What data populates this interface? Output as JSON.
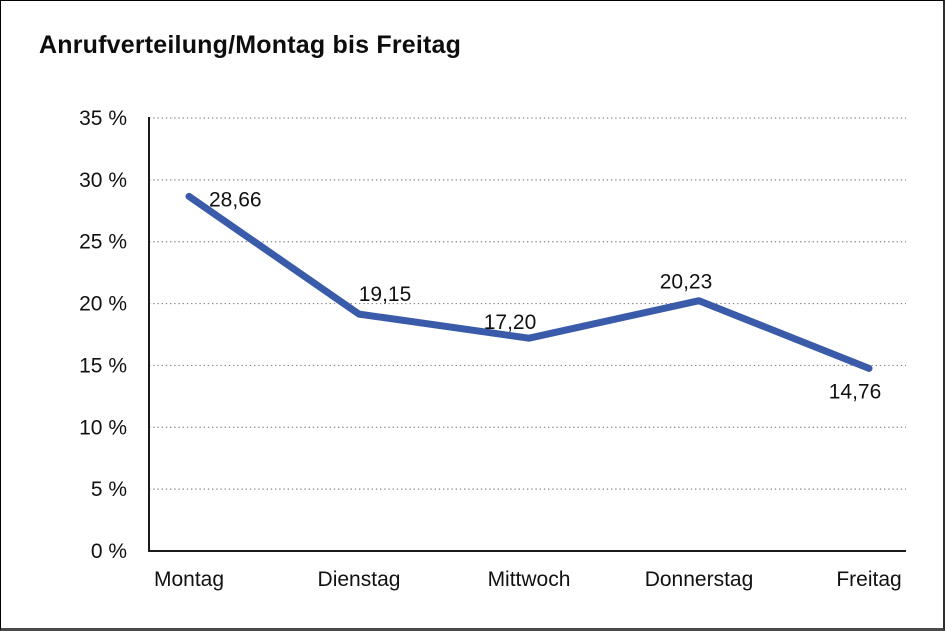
{
  "chart_data": {
    "type": "line",
    "title": "Anrufverteilung/Montag bis Freitag",
    "categories": [
      "Montag",
      "Dienstag",
      "Mittwoch",
      "Donnerstag",
      "Freitag"
    ],
    "series": [
      {
        "name": "Anrufverteilung",
        "values": [
          28.66,
          19.15,
          17.2,
          20.23,
          14.76
        ],
        "value_labels": [
          "28,66",
          "19,15",
          "17,20",
          "20,23",
          "14,76"
        ]
      }
    ],
    "xlabel": "",
    "ylabel": "",
    "ylim": [
      0,
      35
    ],
    "ytick_values": [
      0,
      5,
      10,
      15,
      20,
      25,
      30,
      35
    ],
    "ytick_labels": [
      "0 %",
      "5 %",
      "10 %",
      "15 %",
      "20 %",
      "25 %",
      "30 %",
      "35 %"
    ],
    "grid": "horizontal-dotted",
    "legend": "none",
    "colors": {
      "line": "#3a5ba9",
      "axis": "#1a1a1a",
      "gridline": "#8a8a8a",
      "text": "#111111",
      "background": "#ffffff"
    }
  }
}
